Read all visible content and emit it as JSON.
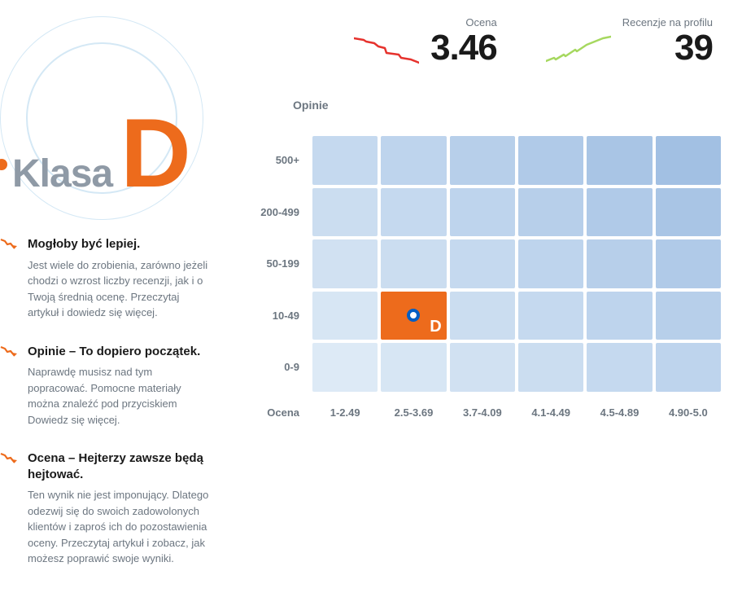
{
  "badge": {
    "label": "Klasa",
    "letter": "D",
    "label_color": "#8f9aa6",
    "letter_color": "#ed6b1c",
    "circle_color": "#d4e8f5",
    "dot_color": "#ed6b1c"
  },
  "tips": [
    {
      "icon": "trend-down-icon",
      "icon_color": "#ed6b1c",
      "title": "Mogłoby być lepiej.",
      "desc": "Jest wiele do zrobienia, zarówno jeżeli chodzi o wzrost liczby recenzji, jak i o Twoją średnią ocenę. Przeczytaj artykuł i dowiedz się więcej."
    },
    {
      "icon": "trend-down-icon",
      "icon_color": "#ed6b1c",
      "title": "Opinie – To dopiero początek.",
      "desc": "Naprawdę musisz nad tym popracować. Pomocne materiały można znaleźć pod przyciskiem Dowiedz się więcej."
    },
    {
      "icon": "trend-down-icon",
      "icon_color": "#ed6b1c",
      "title": "Ocena – Hejterzy zawsze będą hejtować.",
      "desc": "Ten wynik nie jest imponujący. Dlatego odezwij się do swoich zadowolonych klientów i zaproś ich do pozostawienia oceny. Przeczytaj artykuł i zobacz, jak możesz poprawić swoje wyniki."
    }
  ],
  "stats": {
    "ocena": {
      "label": "Ocena",
      "value": "3.46",
      "spark_color": "#e6322d",
      "spark_points": [
        [
          0,
          6
        ],
        [
          12,
          8
        ],
        [
          15,
          10
        ],
        [
          25,
          12
        ],
        [
          30,
          16
        ],
        [
          38,
          18
        ],
        [
          40,
          24
        ],
        [
          55,
          26
        ],
        [
          58,
          30
        ],
        [
          70,
          32
        ],
        [
          80,
          36
        ]
      ]
    },
    "recenzje": {
      "label": "Recenzje na profilu",
      "value": "39",
      "spark_color": "#a6d85f",
      "spark_points": [
        [
          0,
          34
        ],
        [
          10,
          30
        ],
        [
          12,
          32
        ],
        [
          22,
          26
        ],
        [
          24,
          28
        ],
        [
          36,
          20
        ],
        [
          38,
          22
        ],
        [
          50,
          14
        ],
        [
          60,
          10
        ],
        [
          70,
          6
        ],
        [
          80,
          4
        ]
      ]
    }
  },
  "heatmap": {
    "title": "Opinie",
    "row_labels": [
      "500+",
      "200-499",
      "50-199",
      "10-49",
      "0-9"
    ],
    "col_axis_label": "Ocena",
    "col_labels": [
      "1-2.49",
      "2.5-3.69",
      "3.7-4.09",
      "4.1-4.49",
      "4.5-4.89",
      "4.90-5.0"
    ],
    "cell_colors": [
      [
        "#c5d9ef",
        "#bed4ed",
        "#b7cfea",
        "#b0cae8",
        "#a9c5e5",
        "#a2c0e3"
      ],
      [
        "#cbddf0",
        "#c5d9ef",
        "#bed4ed",
        "#b7cfea",
        "#b0cae8",
        "#a9c5e5"
      ],
      [
        "#d1e1f2",
        "#cbddf0",
        "#c5d9ef",
        "#bed4ed",
        "#b7cfea",
        "#b0cae8"
      ],
      [
        "#d7e6f4",
        "#ed6b1c",
        "#cbddf0",
        "#c5d9ef",
        "#bed4ed",
        "#b7cfea"
      ],
      [
        "#ddeaf6",
        "#d7e6f4",
        "#d1e1f2",
        "#cbddf0",
        "#c5d9ef",
        "#bed4ed"
      ]
    ],
    "active": {
      "row": 3,
      "col": 1,
      "letter": "D",
      "marker_color": "#005ec4",
      "bg": "#ed6b1c"
    },
    "label_color": "#6c7680"
  },
  "colors": {
    "text_primary": "#1a1a1a",
    "text_secondary": "#6c7680",
    "background": "#ffffff"
  }
}
